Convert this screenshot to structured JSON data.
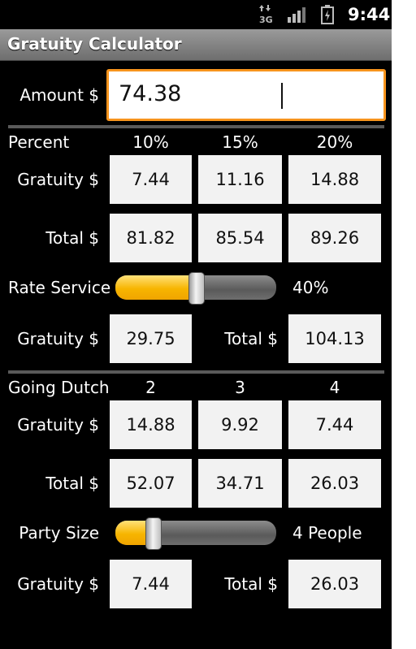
{
  "status": {
    "network": "3G",
    "time": "9:44"
  },
  "app": {
    "title": "Gratuity Calculator"
  },
  "amount": {
    "label": "Amount $",
    "value": "74.38"
  },
  "percent": {
    "label": "Percent",
    "columns": [
      "10%",
      "15%",
      "20%"
    ],
    "gratuity_label": "Gratuity $",
    "gratuity": [
      "7.44",
      "11.16",
      "14.88"
    ],
    "total_label": "Total $",
    "totals": [
      "81.82",
      "85.54",
      "89.26"
    ]
  },
  "rate_service": {
    "label": "Rate Service",
    "value_text": "40%",
    "level": 0.4,
    "gratuity_label": "Gratuity $",
    "gratuity": "29.75",
    "total_label": "Total $",
    "total": "104.13"
  },
  "dutch": {
    "label": "Going Dutch",
    "columns": [
      "2",
      "3",
      "4"
    ],
    "gratuity_label": "Gratuity $",
    "gratuity": [
      "14.88",
      "9.92",
      "7.44"
    ],
    "total_label": "Total $",
    "totals": [
      "52.07",
      "34.71",
      "26.03"
    ]
  },
  "party": {
    "label": "Party Size",
    "value_text": "4 People",
    "level": 0.2,
    "gratuity_label": "Gratuity $",
    "gratuity": "7.44",
    "total_label": "Total $",
    "total": "26.03"
  },
  "colors": {
    "accent": "#f7941d",
    "slider_fill": "#f7b500"
  }
}
